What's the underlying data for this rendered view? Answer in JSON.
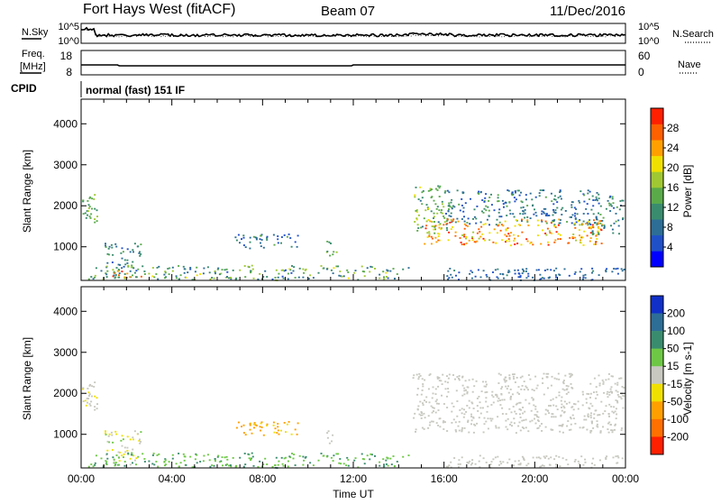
{
  "header": {
    "station": "Fort Hays West (fitACF)",
    "beam": "Beam 07",
    "date": "11/Dec/2016"
  },
  "noise_panel": {
    "left_label": "N.Sky",
    "left_ticks": [
      "10^5",
      "10^0"
    ],
    "right_ticks": [
      "10^5",
      "10^0"
    ],
    "right_label": "N.Search"
  },
  "freq_panel": {
    "left_label_1": "Freq.",
    "left_label_2": "[MHz]",
    "left_ticks": [
      "18",
      "8"
    ],
    "right_ticks": [
      "60",
      "0"
    ],
    "right_label": "Nave"
  },
  "cpid": {
    "label": "CPID",
    "value": "normal (fast) 151 IF"
  },
  "colors": {
    "power": [
      "#0000ff",
      "#2050c8",
      "#2d6e96",
      "#3a8c6e",
      "#5aaa4a",
      "#a0c832",
      "#f0e000",
      "#ffa000",
      "#ff6000",
      "#ff2000"
    ],
    "velocity_pos": [
      "#1030c8",
      "#2d6e96",
      "#3a8c6e",
      "#6ec846"
    ],
    "velocity_neutral": "#c8c8c0",
    "velocity_neg": [
      "#f0e000",
      "#ffa000",
      "#ff7000",
      "#ff2000"
    ]
  },
  "chart_data": [
    {
      "type": "heatmap",
      "name": "power",
      "ylabel": "Slant Range [km]",
      "yticks": [
        "4000",
        "3000",
        "2000",
        "1000"
      ],
      "ylim": [
        180,
        4600
      ],
      "xlim": [
        0,
        24
      ],
      "colorbar_label": "Power [dB]",
      "colorbar_ticks": [
        "28",
        "24",
        "20",
        "16",
        "12",
        "8",
        "4"
      ],
      "colorbar_range": [
        0,
        32
      ],
      "regions": [
        {
          "t0": 0.0,
          "t1": 0.7,
          "r0": 1600,
          "r1": 2400,
          "lvl": [
            10,
            20
          ]
        },
        {
          "t0": 1.0,
          "t1": 2.6,
          "r0": 250,
          "r1": 1100,
          "lvl": [
            6,
            14
          ]
        },
        {
          "t0": 1.3,
          "t1": 2.7,
          "r0": 250,
          "r1": 430,
          "lvl": [
            24,
            30
          ]
        },
        {
          "t0": 0.3,
          "t1": 14.5,
          "r0": 200,
          "r1": 560,
          "lvl": [
            6,
            20
          ]
        },
        {
          "t0": 6.7,
          "t1": 9.6,
          "r0": 980,
          "r1": 1350,
          "lvl": [
            4,
            14
          ]
        },
        {
          "t0": 10.8,
          "t1": 11.3,
          "r0": 800,
          "r1": 1150,
          "lvl": [
            8,
            20
          ]
        },
        {
          "t0": 14.6,
          "t1": 16.2,
          "r0": 1250,
          "r1": 2500,
          "lvl": [
            8,
            20
          ]
        },
        {
          "t0": 16.0,
          "t1": 22.8,
          "r0": 1550,
          "r1": 2400,
          "lvl": [
            4,
            14
          ]
        },
        {
          "t0": 15.0,
          "t1": 23.0,
          "r0": 1050,
          "r1": 1700,
          "lvl": [
            18,
            30
          ]
        },
        {
          "t0": 22.5,
          "t1": 23.9,
          "r0": 1300,
          "r1": 2300,
          "lvl": [
            6,
            16
          ]
        },
        {
          "t0": 16.0,
          "t1": 23.9,
          "r0": 200,
          "r1": 500,
          "lvl": [
            4,
            10
          ]
        }
      ]
    },
    {
      "type": "heatmap",
      "name": "velocity",
      "ylabel": "Slant Range [km]",
      "yticks": [
        "4000",
        "3000",
        "2000",
        "1000"
      ],
      "ylim": [
        180,
        4600
      ],
      "xlim": [
        0,
        24
      ],
      "xlabel": "Time UT",
      "xticks": [
        "00:00",
        "04:00",
        "08:00",
        "12:00",
        "16:00",
        "20:00",
        "00:00"
      ],
      "colorbar_label": "Velocity [m s-1]",
      "colorbar_ticks": [
        "200",
        "100",
        "50",
        "15",
        "-15",
        "-50",
        "-100",
        "-200"
      ],
      "colorbar_range": [
        -250,
        250
      ],
      "regions": [
        {
          "t0": 0.0,
          "t1": 0.7,
          "r0": 1600,
          "r1": 2400,
          "lvl": [
            -20,
            15
          ]
        },
        {
          "t0": 1.0,
          "t1": 2.6,
          "r0": 250,
          "r1": 1100,
          "lvl": [
            -40,
            30
          ]
        },
        {
          "t0": 0.3,
          "t1": 14.5,
          "r0": 200,
          "r1": 560,
          "lvl": [
            15,
            70
          ]
        },
        {
          "t0": 6.7,
          "t1": 9.6,
          "r0": 980,
          "r1": 1350,
          "lvl": [
            -90,
            -30
          ]
        },
        {
          "t0": 10.8,
          "t1": 11.3,
          "r0": 800,
          "r1": 1150,
          "lvl": [
            -20,
            15
          ]
        },
        {
          "t0": 14.6,
          "t1": 23.9,
          "r0": 1050,
          "r1": 2500,
          "lvl": [
            -14,
            14
          ]
        },
        {
          "t0": 16.0,
          "t1": 23.9,
          "r0": 200,
          "r1": 500,
          "lvl": [
            -14,
            14
          ]
        }
      ]
    }
  ]
}
